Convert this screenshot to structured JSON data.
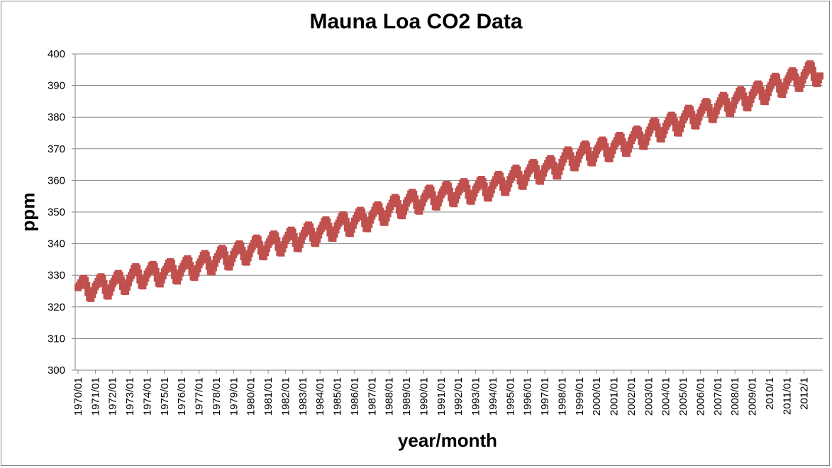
{
  "chart_data": {
    "type": "scatter",
    "title": "Mauna Loa CO2 Data",
    "xlabel": "year/month",
    "ylabel": "ppm",
    "ylim": [
      300,
      400
    ],
    "y_ticks": [
      300,
      310,
      320,
      330,
      340,
      350,
      360,
      370,
      380,
      390,
      400
    ],
    "x_tick_labels": [
      "1970/01",
      "1971/01",
      "1972/01",
      "1973/01",
      "1974/01",
      "1975/01",
      "1976/01",
      "1977/01",
      "1978/01",
      "1979/01",
      "1980/01",
      "1981/01",
      "1982/01",
      "1983/01",
      "1984/01",
      "1985/01",
      "1986/01",
      "1987/01",
      "1988/01",
      "1989/01",
      "1990/01",
      "1991/01",
      "1992/01",
      "1993/01",
      "1994/01",
      "1995/01",
      "1996/01",
      "1997/01",
      "1998/01",
      "1999/01",
      "2000/01",
      "2001/01",
      "2002/01",
      "2003/01",
      "2004/01",
      "2005/01",
      "2006/01",
      "2007/01",
      "2008/01",
      "2009/01",
      "2010/1",
      "2011/01",
      "2012/1"
    ],
    "gridlines": "horizontal",
    "legend": "none",
    "marker_color": "#C0504D",
    "series": [
      {
        "name": "CO2",
        "start": "1970/01",
        "end": "2012/12",
        "frequency": "monthly",
        "annual_mean_ppm": [
          325.7,
          326.3,
          327.4,
          329.7,
          330.2,
          331.1,
          332.0,
          333.8,
          335.4,
          336.8,
          338.7,
          339.9,
          341.1,
          342.8,
          344.4,
          346.0,
          347.4,
          349.2,
          351.6,
          353.1,
          354.4,
          355.6,
          356.4,
          357.1,
          358.8,
          360.8,
          362.6,
          363.7,
          366.7,
          368.4,
          369.6,
          371.1,
          373.2,
          375.8,
          377.5,
          379.8,
          381.9,
          383.8,
          385.6,
          387.4,
          389.9,
          391.6,
          393.8
        ],
        "seasonal_amplitude_ppm": 3.3
      }
    ]
  }
}
